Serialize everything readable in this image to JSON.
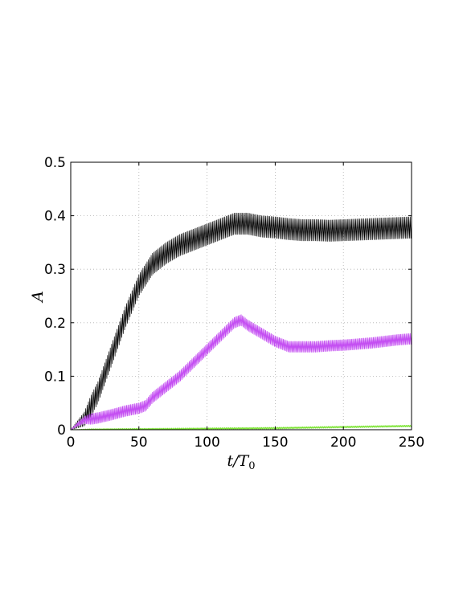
{
  "chart_data": {
    "type": "line",
    "title": "",
    "xlabel": {
      "main": "t/T",
      "sub": "0"
    },
    "ylabel": "A",
    "xlim": [
      0,
      250
    ],
    "ylim": [
      0,
      0.5
    ],
    "xticks": [
      "0",
      "50",
      "100",
      "150",
      "200",
      "250"
    ],
    "yticks": [
      "0",
      "0.1",
      "0.2",
      "0.3",
      "0.4",
      "0.5"
    ],
    "grid": true,
    "legend": "none",
    "series": [
      {
        "color": "#000000",
        "style": "oscillating",
        "oscillation_amplitude": 0.02,
        "x": [
          0,
          10,
          20,
          30,
          40,
          50,
          60,
          70,
          80,
          90,
          100,
          110,
          120,
          130,
          140,
          150,
          160,
          170,
          180,
          190,
          200,
          210,
          220,
          230,
          240,
          250
        ],
        "y": [
          0.0,
          0.02,
          0.07,
          0.14,
          0.21,
          0.27,
          0.31,
          0.33,
          0.345,
          0.355,
          0.365,
          0.375,
          0.385,
          0.385,
          0.38,
          0.378,
          0.375,
          0.373,
          0.373,
          0.372,
          0.373,
          0.374,
          0.375,
          0.376,
          0.377,
          0.378
        ]
      },
      {
        "color": "#c44ff2",
        "style": "oscillating",
        "oscillation_amplitude": 0.01,
        "x": [
          0,
          5,
          10,
          20,
          30,
          40,
          50,
          55,
          60,
          70,
          80,
          90,
          100,
          110,
          120,
          125,
          130,
          140,
          150,
          160,
          170,
          180,
          190,
          200,
          210,
          220,
          230,
          240,
          250
        ],
        "y": [
          0.0,
          0.01,
          0.018,
          0.022,
          0.028,
          0.035,
          0.04,
          0.045,
          0.06,
          0.08,
          0.1,
          0.125,
          0.15,
          0.175,
          0.2,
          0.205,
          0.195,
          0.18,
          0.165,
          0.155,
          0.155,
          0.155,
          0.157,
          0.158,
          0.16,
          0.162,
          0.165,
          0.168,
          0.17
        ]
      },
      {
        "color": "#76e32a",
        "style": "oscillating",
        "oscillation_amplitude": 0.0015,
        "x": [
          0,
          50,
          100,
          150,
          200,
          250
        ],
        "y": [
          0.0,
          0.001,
          0.002,
          0.003,
          0.005,
          0.007
        ]
      }
    ]
  }
}
